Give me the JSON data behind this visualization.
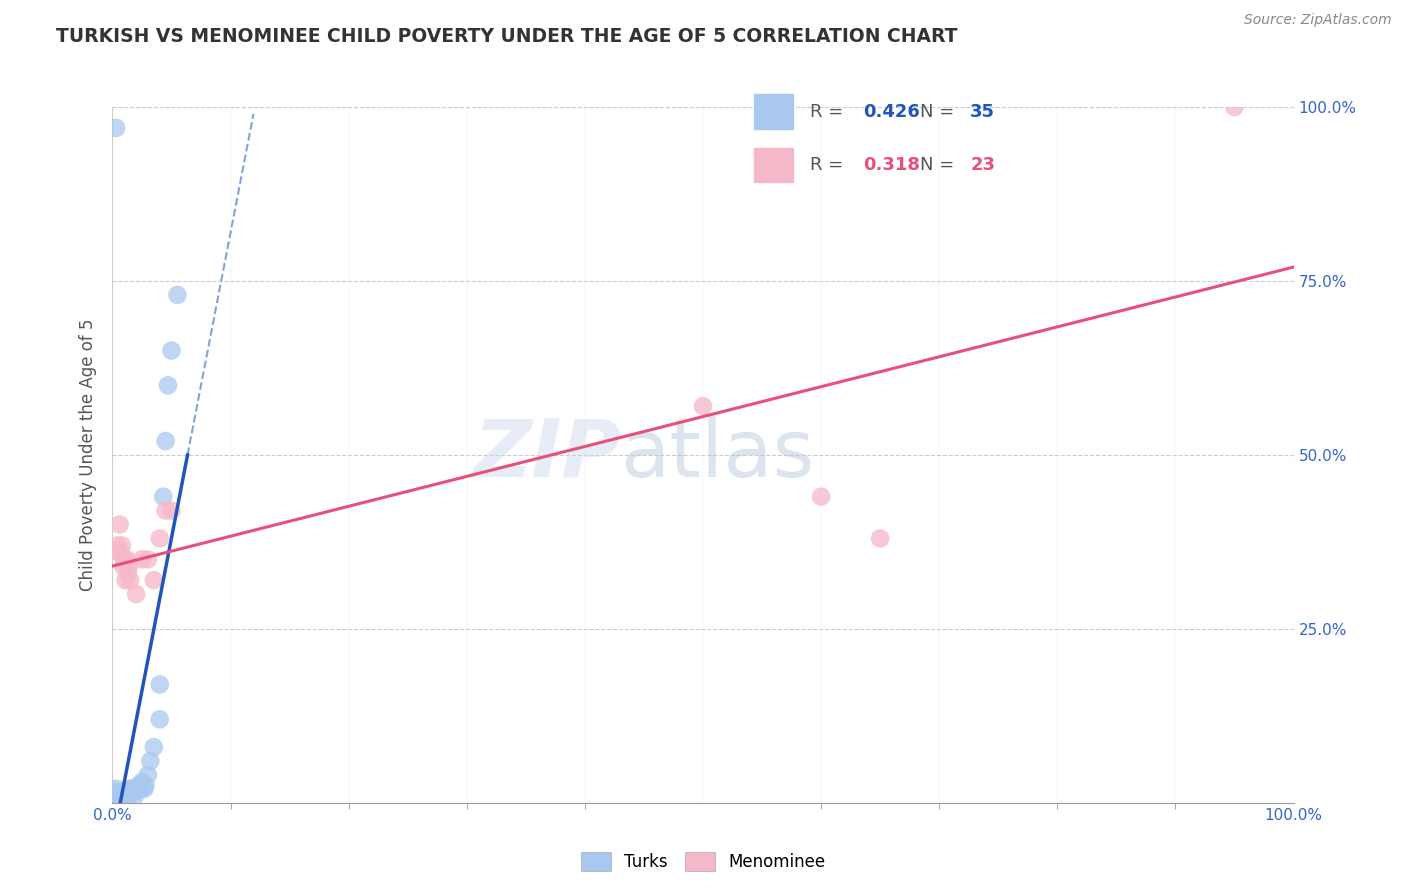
{
  "title": "TURKISH VS MENOMINEE CHILD POVERTY UNDER THE AGE OF 5 CORRELATION CHART",
  "source": "Source: ZipAtlas.com",
  "ylabel": "Child Poverty Under the Age of 5",
  "xlim": [
    0,
    1.0
  ],
  "ylim": [
    0,
    1.0
  ],
  "xticks": [
    0.0,
    0.25,
    0.5,
    0.75,
    1.0
  ],
  "yticks": [
    0.0,
    0.25,
    0.5,
    0.75,
    1.0
  ],
  "xticklabels": [
    "0.0%",
    "",
    "",
    "",
    "100.0%"
  ],
  "right_yticklabels": [
    "25.0%",
    "50.0%",
    "75.0%",
    "100.0%"
  ],
  "turks_R": 0.426,
  "turks_N": 35,
  "menominee_R": 0.318,
  "menominee_N": 23,
  "turks_color": "#a8c8f0",
  "menominee_color": "#f5b8c8",
  "turks_line_color": "#2255bb",
  "menominee_line_color": "#e8507a",
  "background_color": "#ffffff",
  "turks_x": [
    0.003,
    0.004,
    0.005,
    0.006,
    0.007,
    0.008,
    0.009,
    0.01,
    0.011,
    0.012,
    0.013,
    0.014,
    0.015,
    0.016,
    0.017,
    0.018,
    0.019,
    0.02,
    0.021,
    0.022,
    0.024,
    0.025,
    0.027,
    0.028,
    0.03,
    0.032,
    0.035,
    0.04,
    0.04,
    0.043,
    0.045,
    0.047,
    0.05,
    0.055,
    0.003
  ],
  "turks_y": [
    0.02,
    0.01,
    0.015,
    0.01,
    0.01,
    0.01,
    0.015,
    0.01,
    0.01,
    0.015,
    0.01,
    0.015,
    0.02,
    0.02,
    0.015,
    0.015,
    0.01,
    0.02,
    0.02,
    0.025,
    0.02,
    0.03,
    0.02,
    0.025,
    0.04,
    0.06,
    0.08,
    0.12,
    0.17,
    0.44,
    0.52,
    0.6,
    0.65,
    0.73,
    0.97
  ],
  "menominee_x": [
    0.004,
    0.005,
    0.006,
    0.007,
    0.008,
    0.009,
    0.01,
    0.011,
    0.012,
    0.013,
    0.014,
    0.015,
    0.02,
    0.025,
    0.03,
    0.035,
    0.04,
    0.045,
    0.05,
    0.5,
    0.6,
    0.65,
    0.95
  ],
  "menominee_y": [
    0.37,
    0.36,
    0.4,
    0.36,
    0.37,
    0.34,
    0.35,
    0.32,
    0.35,
    0.33,
    0.34,
    0.32,
    0.3,
    0.35,
    0.35,
    0.32,
    0.38,
    0.42,
    0.42,
    0.57,
    0.44,
    0.38,
    1.0
  ]
}
